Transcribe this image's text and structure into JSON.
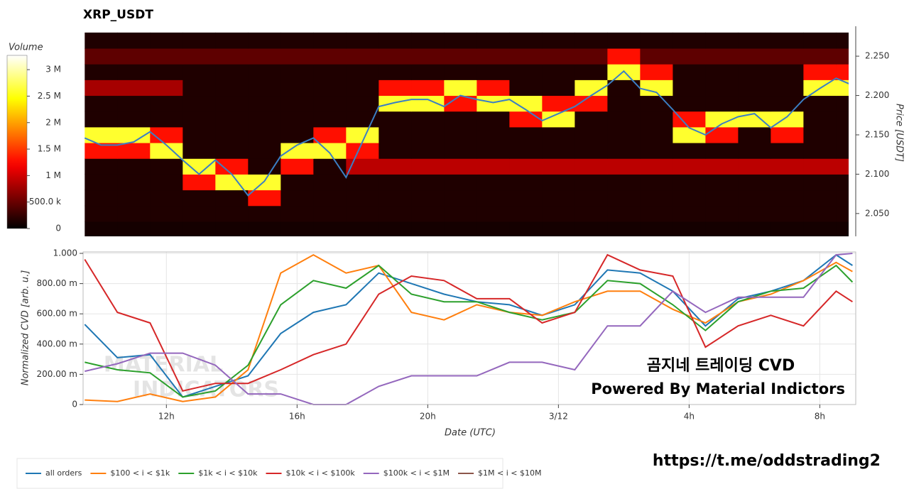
{
  "chart_data": [
    {
      "type": "heatmap",
      "title": "XRP_USDT",
      "y_label": "Price [USDT]",
      "colorscale": "hot",
      "colorbar_title": "Volume",
      "x": [
        10,
        11,
        12,
        13,
        14,
        15,
        16,
        17,
        18,
        19,
        20,
        21,
        22,
        23,
        24,
        25,
        26,
        27,
        28,
        29,
        30,
        31,
        32,
        33
      ],
      "y": [
        2.03,
        2.05,
        2.07,
        2.09,
        2.11,
        2.13,
        2.15,
        2.17,
        2.19,
        2.21,
        2.23,
        2.25,
        2.27
      ],
      "z": [
        [
          100000,
          100000,
          100000,
          100000,
          100000,
          100000,
          100000,
          100000,
          100000,
          100000,
          100000,
          100000,
          100000,
          100000,
          100000,
          100000,
          100000,
          100000,
          100000,
          100000,
          100000,
          100000,
          100000,
          100000
        ],
        [
          150000,
          150000,
          150000,
          150000,
          150000,
          150000,
          150000,
          150000,
          150000,
          150000,
          150000,
          150000,
          150000,
          150000,
          150000,
          150000,
          150000,
          150000,
          150000,
          150000,
          150000,
          150000,
          150000,
          150000
        ],
        [
          150000,
          150000,
          150000,
          150000,
          150000,
          1300000,
          150000,
          150000,
          150000,
          150000,
          150000,
          150000,
          150000,
          150000,
          150000,
          150000,
          150000,
          150000,
          150000,
          150000,
          150000,
          150000,
          150000,
          150000
        ],
        [
          150000,
          150000,
          150000,
          1300000,
          2600000,
          2600000,
          150000,
          150000,
          150000,
          150000,
          150000,
          150000,
          150000,
          150000,
          150000,
          150000,
          150000,
          150000,
          150000,
          150000,
          150000,
          150000,
          150000,
          150000
        ],
        [
          150000,
          150000,
          150000,
          2600000,
          1300000,
          150000,
          1300000,
          150000,
          900000,
          900000,
          900000,
          900000,
          900000,
          900000,
          900000,
          900000,
          900000,
          900000,
          900000,
          900000,
          900000,
          900000,
          900000,
          900000
        ],
        [
          1300000,
          1300000,
          2600000,
          150000,
          150000,
          150000,
          2600000,
          2600000,
          1300000,
          150000,
          150000,
          150000,
          150000,
          150000,
          150000,
          150000,
          150000,
          150000,
          150000,
          150000,
          150000,
          150000,
          150000,
          150000
        ],
        [
          2600000,
          2600000,
          1300000,
          150000,
          150000,
          150000,
          150000,
          1300000,
          2600000,
          150000,
          150000,
          150000,
          150000,
          150000,
          150000,
          150000,
          150000,
          150000,
          2600000,
          1300000,
          150000,
          1300000,
          150000,
          150000
        ],
        [
          150000,
          150000,
          150000,
          150000,
          150000,
          150000,
          150000,
          150000,
          150000,
          150000,
          150000,
          150000,
          150000,
          1300000,
          2600000,
          150000,
          150000,
          150000,
          1300000,
          2600000,
          2600000,
          2600000,
          150000,
          150000
        ],
        [
          150000,
          150000,
          150000,
          150000,
          150000,
          150000,
          150000,
          150000,
          150000,
          2600000,
          2600000,
          1300000,
          2600000,
          2600000,
          1300000,
          1300000,
          150000,
          150000,
          150000,
          150000,
          150000,
          150000,
          150000,
          150000
        ],
        [
          800000,
          800000,
          800000,
          150000,
          150000,
          150000,
          150000,
          150000,
          150000,
          1300000,
          1300000,
          2600000,
          1300000,
          150000,
          150000,
          2600000,
          150000,
          2600000,
          150000,
          150000,
          150000,
          150000,
          2600000,
          2600000
        ],
        [
          150000,
          150000,
          150000,
          150000,
          150000,
          150000,
          150000,
          150000,
          150000,
          150000,
          150000,
          150000,
          150000,
          150000,
          150000,
          150000,
          2600000,
          1300000,
          150000,
          150000,
          150000,
          150000,
          1300000,
          1300000
        ],
        [
          450000,
          450000,
          450000,
          450000,
          450000,
          450000,
          450000,
          450000,
          450000,
          450000,
          450000,
          450000,
          450000,
          450000,
          450000,
          450000,
          1300000,
          450000,
          450000,
          450000,
          450000,
          450000,
          450000,
          450000
        ],
        [
          150000,
          150000,
          150000,
          150000,
          150000,
          150000,
          150000,
          150000,
          150000,
          150000,
          150000,
          150000,
          150000,
          150000,
          150000,
          150000,
          150000,
          150000,
          150000,
          150000,
          150000,
          150000,
          150000,
          150000
        ]
      ],
      "zlim": [
        0,
        3270000
      ],
      "zticks": [
        0,
        {
          "value": 500000,
          "label": "500.0 k"
        },
        {
          "value": 1000000,
          "label": "1 M"
        },
        {
          "value": 1500000,
          "label": "1.5 M"
        },
        {
          "value": 2000000,
          "label": "2 M"
        },
        {
          "value": 2500000,
          "label": "2.5 M"
        },
        {
          "value": 3000000,
          "label": "3 M"
        }
      ],
      "xlim": [
        9.45,
        33.1
      ],
      "ylim": [
        2.021,
        2.288
      ],
      "yticks": [
        {
          "value": 2.05,
          "label": "2.050"
        },
        {
          "value": 2.1,
          "label": "2.100"
        },
        {
          "value": 2.15,
          "label": "2.150"
        },
        {
          "value": 2.2,
          "label": "2.200"
        },
        {
          "value": 2.25,
          "label": "2.250"
        }
      ],
      "series": [
        {
          "color": "#3b7fc4",
          "x": [
            9.5,
            10,
            10.5,
            11,
            11.5,
            12,
            12.5,
            13,
            13.5,
            14,
            14.5,
            15,
            15.5,
            16,
            16.5,
            17,
            17.5,
            18,
            18.5,
            19,
            19.5,
            20,
            20.5,
            21,
            21.5,
            22,
            22.5,
            23,
            23.5,
            24,
            24.5,
            25,
            25.5,
            26,
            26.5,
            27,
            27.5,
            28,
            28.5,
            29,
            29.5,
            30,
            30.5,
            31,
            31.5,
            32,
            32.5,
            33
          ],
          "values": [
            2.146,
            2.137,
            2.137,
            2.141,
            2.154,
            2.137,
            2.118,
            2.1,
            2.118,
            2.1,
            2.073,
            2.091,
            2.123,
            2.137,
            2.146,
            2.127,
            2.096,
            2.141,
            2.186,
            2.191,
            2.195,
            2.195,
            2.186,
            2.2,
            2.195,
            2.191,
            2.195,
            2.182,
            2.168,
            2.177,
            2.186,
            2.2,
            2.213,
            2.231,
            2.209,
            2.204,
            2.182,
            2.159,
            2.15,
            2.164,
            2.173,
            2.177,
            2.159,
            2.173,
            2.195,
            2.209,
            2.222,
            2.213
          ]
        }
      ]
    },
    {
      "type": "line",
      "x_label": "Date (UTC)",
      "y_label": "Normalized CVD [arb. u.]",
      "grid": true,
      "legend": "bottom-left",
      "x": [
        9.5,
        10.5,
        11.5,
        12.5,
        13.5,
        14.5,
        15.5,
        16.5,
        17.5,
        18.5,
        19.5,
        20.5,
        21.5,
        22.5,
        23.5,
        24.5,
        25.5,
        26.5,
        27.5,
        28.5,
        29.5,
        30.5,
        31.5,
        32.5,
        33
      ],
      "xlim": [
        9.45,
        33.1
      ],
      "xticks": [
        {
          "value": 12,
          "label": "12h"
        },
        {
          "value": 16,
          "label": "16h"
        },
        {
          "value": 20,
          "label": "20h"
        },
        {
          "value": 24,
          "label": "3/12"
        },
        {
          "value": 28,
          "label": "4h"
        },
        {
          "value": 32,
          "label": "8h"
        }
      ],
      "ylim": [
        0,
        1
      ],
      "yticks": [
        0,
        {
          "value": 0.2,
          "label": "200.00 m"
        },
        {
          "value": 0.4,
          "label": "400.00 m"
        },
        {
          "value": 0.6,
          "label": "600.00 m"
        },
        {
          "value": 0.8,
          "label": "800.00 m"
        },
        {
          "value": 1,
          "label": "1.000"
        }
      ],
      "series": [
        {
          "name": "all orders",
          "color": "#1f77b4",
          "values": [
            0.53,
            0.31,
            0.33,
            0.05,
            0.12,
            0.19,
            0.47,
            0.61,
            0.66,
            0.87,
            0.8,
            0.73,
            0.68,
            0.66,
            0.59,
            0.66,
            0.89,
            0.87,
            0.75,
            0.52,
            0.7,
            0.75,
            0.82,
            0.99,
            0.92
          ]
        },
        {
          "name": "$100 < i < $1k",
          "color": "#ff7f0e",
          "values": [
            0.03,
            0.02,
            0.07,
            0.02,
            0.05,
            0.23,
            0.87,
            0.99,
            0.87,
            0.92,
            0.61,
            0.56,
            0.66,
            0.61,
            0.59,
            0.68,
            0.75,
            0.75,
            0.63,
            0.54,
            0.68,
            0.73,
            0.82,
            0.94,
            0.88
          ]
        },
        {
          "name": "$1k < i < $10k",
          "color": "#2ca02c",
          "values": [
            0.28,
            0.23,
            0.21,
            0.05,
            0.09,
            0.26,
            0.66,
            0.82,
            0.77,
            0.92,
            0.73,
            0.68,
            0.68,
            0.61,
            0.56,
            0.61,
            0.82,
            0.8,
            0.66,
            0.49,
            0.68,
            0.75,
            0.77,
            0.92,
            0.81
          ]
        },
        {
          "name": "$10k < i < $100k",
          "color": "#d62728",
          "values": [
            0.96,
            0.61,
            0.54,
            0.09,
            0.14,
            0.14,
            0.23,
            0.33,
            0.4,
            0.73,
            0.85,
            0.82,
            0.7,
            0.7,
            0.54,
            0.61,
            0.99,
            0.89,
            0.85,
            0.38,
            0.52,
            0.59,
            0.52,
            0.75,
            0.68
          ]
        },
        {
          "name": "$100k < i < $1M",
          "color": "#9467bd",
          "values": [
            0.22,
            0.27,
            0.34,
            0.34,
            0.26,
            0.07,
            0.07,
            0,
            0,
            0.12,
            0.19,
            0.19,
            0.19,
            0.28,
            0.28,
            0.23,
            0.52,
            0.52,
            0.75,
            0.61,
            0.71,
            0.71,
            0.71,
            0.99,
            1
          ]
        },
        {
          "name": "$1M < i < $10M",
          "color": "#8c564b",
          "values": [
            null,
            null,
            null,
            null,
            null,
            null,
            null,
            null,
            null,
            null,
            null,
            null,
            null,
            null,
            null,
            null,
            null,
            null,
            null,
            null,
            null,
            null,
            null,
            null,
            null
          ]
        }
      ]
    }
  ],
  "watermark": [
    "MATERIAL",
    "INDICATORS"
  ],
  "annotations": [
    "곰지네 트레이딩 CVD",
    "Powered By Material Indictors"
  ],
  "link": "https://t.me/oddstrading2"
}
